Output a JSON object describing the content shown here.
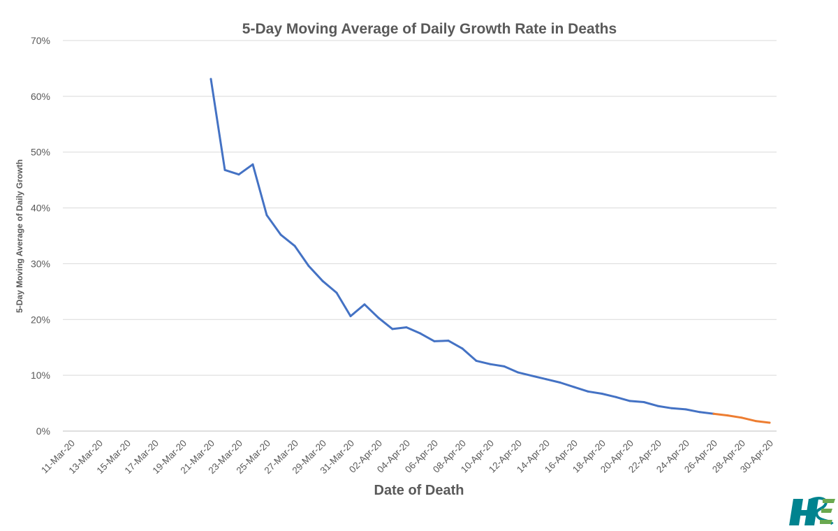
{
  "chart_data": {
    "type": "line",
    "title": "5-Day Moving Average of Daily Growth Rate in Deaths",
    "xlabel": "Date of Death",
    "ylabel": "5-Day Moving Average of Daily Growth",
    "ylim": [
      0,
      70
    ],
    "y_ticks": [
      "0%",
      "10%",
      "20%",
      "30%",
      "40%",
      "50%",
      "60%",
      "70%"
    ],
    "grid": true,
    "x_tick_labels": [
      "11-Mar-20",
      "13-Mar-20",
      "15-Mar-20",
      "17-Mar-20",
      "19-Mar-20",
      "21-Mar-20",
      "23-Mar-20",
      "25-Mar-20",
      "27-Mar-20",
      "29-Mar-20",
      "31-Mar-20",
      "02-Apr-20",
      "04-Apr-20",
      "06-Apr-20",
      "08-Apr-20",
      "10-Apr-20",
      "12-Apr-20",
      "14-Apr-20",
      "16-Apr-20",
      "18-Apr-20",
      "20-Apr-20",
      "22-Apr-20",
      "24-Apr-20",
      "26-Apr-20",
      "28-Apr-20",
      "30-Apr-20"
    ],
    "series": [
      {
        "color": "#4472c4",
        "x": [
          "21-Mar-20",
          "22-Mar-20",
          "23-Mar-20",
          "24-Mar-20",
          "25-Mar-20",
          "26-Mar-20",
          "27-Mar-20",
          "28-Mar-20",
          "29-Mar-20",
          "30-Mar-20",
          "31-Mar-20",
          "01-Apr-20",
          "02-Apr-20",
          "03-Apr-20",
          "04-Apr-20",
          "05-Apr-20",
          "06-Apr-20",
          "07-Apr-20",
          "08-Apr-20",
          "09-Apr-20",
          "10-Apr-20",
          "11-Apr-20",
          "12-Apr-20",
          "13-Apr-20",
          "14-Apr-20",
          "15-Apr-20",
          "16-Apr-20",
          "17-Apr-20",
          "18-Apr-20",
          "19-Apr-20",
          "20-Apr-20",
          "21-Apr-20",
          "22-Apr-20",
          "23-Apr-20",
          "24-Apr-20",
          "25-Apr-20",
          "26-Apr-20"
        ],
        "values": [
          63.1,
          46.8,
          46.0,
          47.8,
          38.7,
          35.2,
          33.2,
          29.6,
          26.9,
          24.8,
          20.6,
          22.7,
          20.3,
          18.3,
          18.6,
          17.5,
          16.1,
          16.2,
          14.8,
          12.6,
          12.0,
          11.6,
          10.5,
          9.9,
          9.3,
          8.7,
          7.9,
          7.1,
          6.7,
          6.1,
          5.4,
          5.2,
          4.5,
          4.1,
          3.9,
          3.4,
          3.1
        ]
      },
      {
        "color": "#ed7d31",
        "x": [
          "26-Apr-20",
          "27-Apr-20",
          "28-Apr-20",
          "29-Apr-20",
          "30-Apr-20"
        ],
        "values": [
          3.1,
          2.8,
          2.4,
          1.8,
          1.5
        ]
      }
    ]
  },
  "branding": {
    "logo_text": "HSE"
  }
}
